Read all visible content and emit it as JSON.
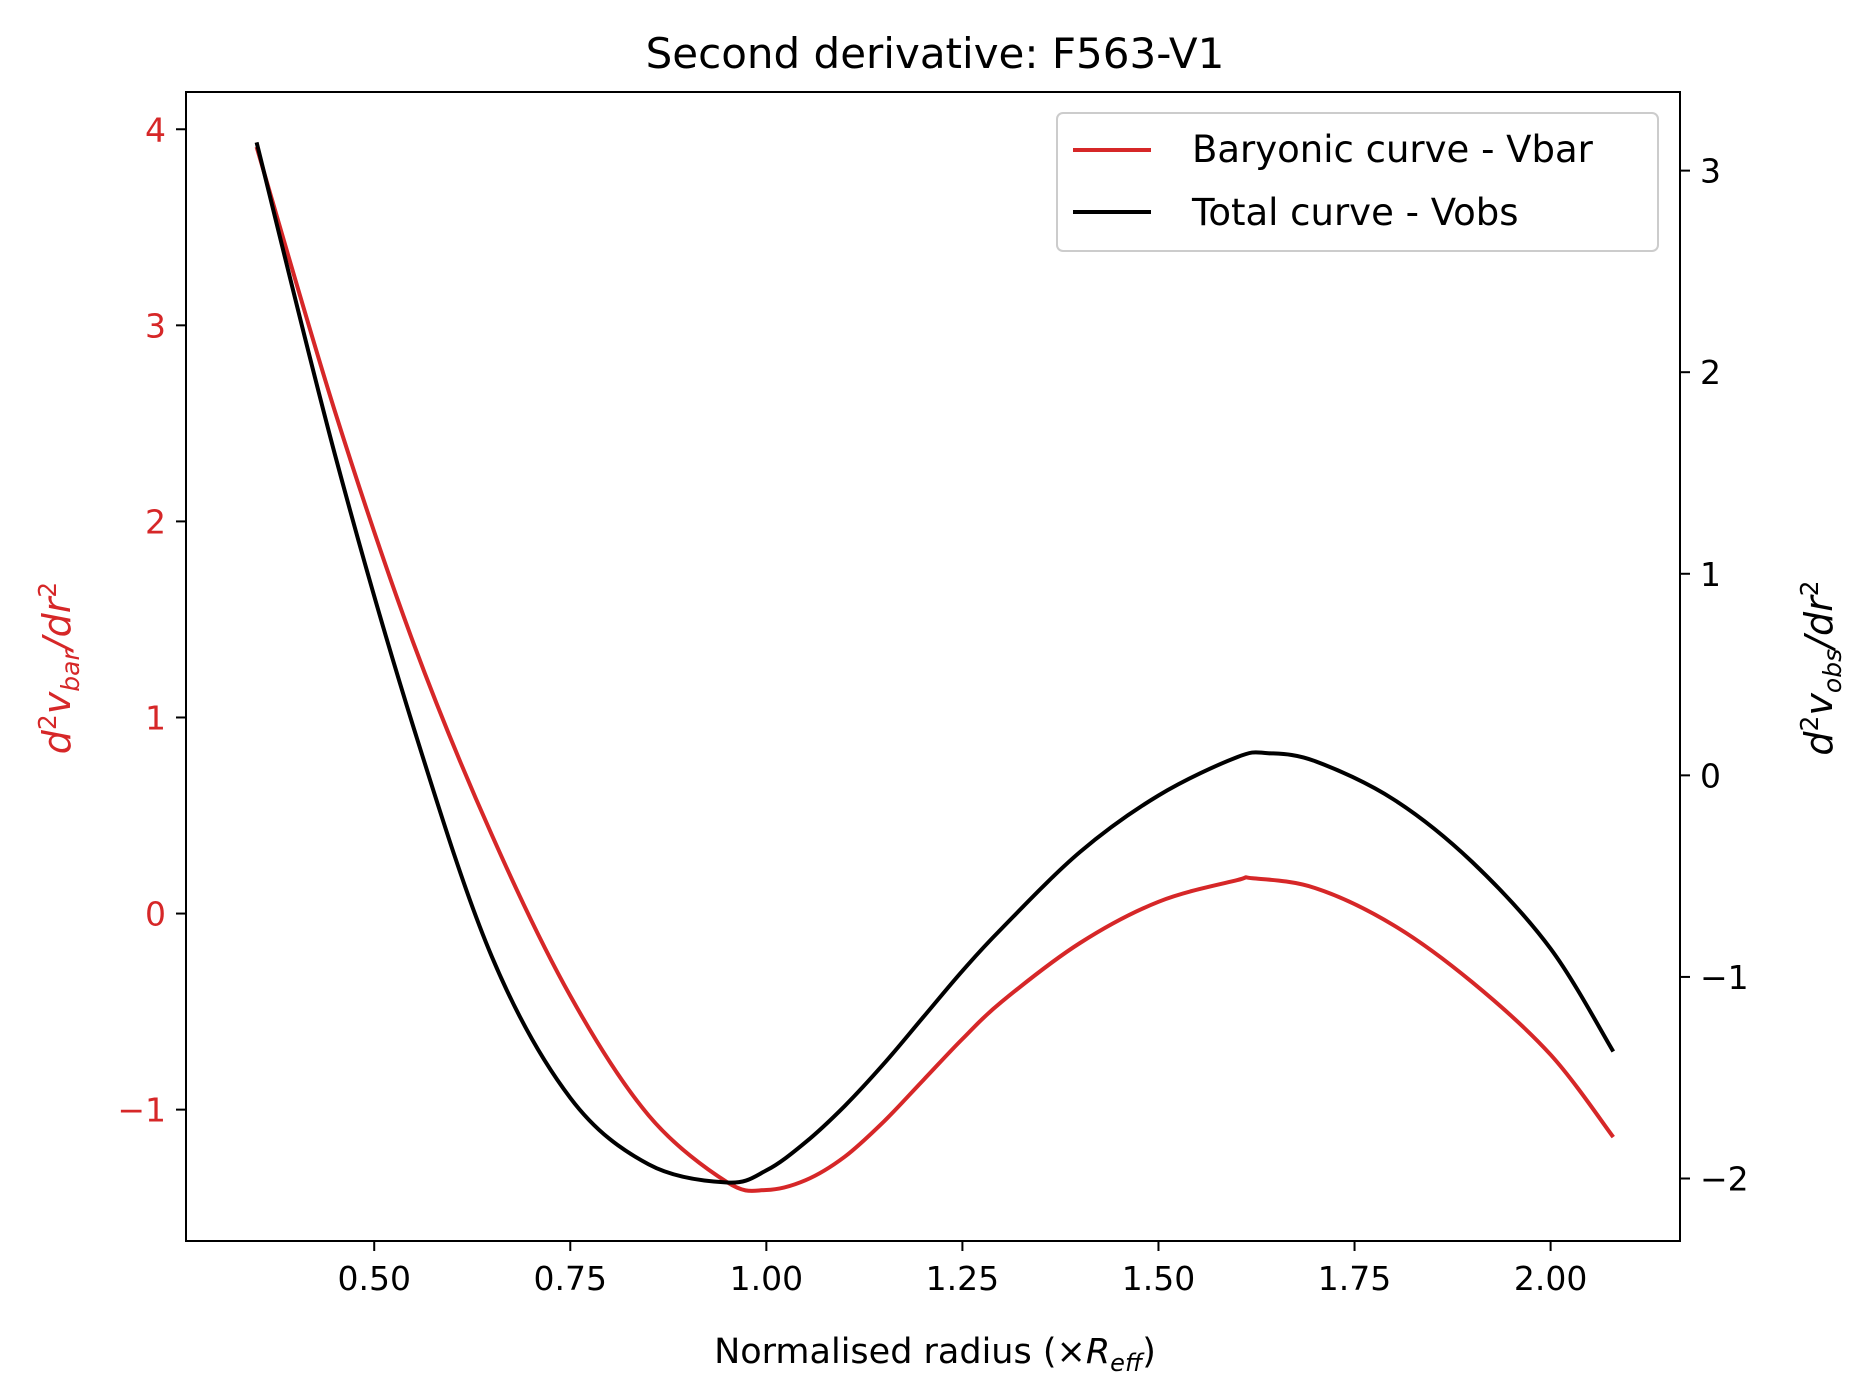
{
  "chart_data": {
    "type": "line",
    "title": "Second derivative: F563-V1",
    "xlabel": "Normalised radius (×R_eff)",
    "xlabel_parts": {
      "main": "Normalised radius (×",
      "italic": "R",
      "sub": "eff",
      "close": ")"
    },
    "ylabel_left_parts": {
      "d": "d",
      "sup": "2",
      "v": "v",
      "sub": "bar",
      "rest": "/dr",
      "sup2": "2"
    },
    "ylabel_right_parts": {
      "d": "d",
      "sup": "2",
      "v": "v",
      "sub": "obs",
      "rest": "/dr",
      "sup2": "2"
    },
    "xlim": [
      0.26,
      2.165
    ],
    "ylim_left": [
      -1.67,
      4.19
    ],
    "ylim_right": [
      -2.31,
      3.39
    ],
    "x_ticks": [
      "0.50",
      "0.75",
      "1.00",
      "1.25",
      "1.50",
      "1.75",
      "2.00"
    ],
    "y_left_ticks": [
      "−1",
      "0",
      "1",
      "2",
      "3",
      "4"
    ],
    "y_right_ticks": [
      "−2",
      "−1",
      "0",
      "1",
      "2",
      "3"
    ],
    "legend_position": "top-right",
    "colors": {
      "vbar": "#d62728",
      "vobs": "#000000"
    },
    "series": [
      {
        "name": "Baryonic curve - Vbar",
        "axis": "left",
        "x": [
          0.35,
          0.45,
          0.55,
          0.65,
          0.75,
          0.85,
          0.95,
          1.0,
          1.05,
          1.1,
          1.15,
          1.2,
          1.25,
          1.3,
          1.4,
          1.5,
          1.6,
          1.62,
          1.7,
          1.8,
          1.9,
          2.0,
          2.08
        ],
        "values": [
          3.91,
          2.56,
          1.38,
          0.4,
          -0.42,
          -1.03,
          -1.37,
          -1.41,
          -1.36,
          -1.24,
          -1.06,
          -0.85,
          -0.64,
          -0.45,
          -0.15,
          0.06,
          0.17,
          0.18,
          0.13,
          -0.06,
          -0.35,
          -0.72,
          -1.14
        ]
      },
      {
        "name": "Total curve - Vobs",
        "axis": "right",
        "x": [
          0.35,
          0.45,
          0.55,
          0.65,
          0.75,
          0.85,
          0.95,
          1.0,
          1.05,
          1.1,
          1.15,
          1.2,
          1.25,
          1.3,
          1.4,
          1.5,
          1.6,
          1.64,
          1.7,
          1.8,
          1.9,
          2.0,
          2.08
        ],
        "values": [
          3.14,
          1.59,
          0.24,
          -0.9,
          -1.6,
          -1.93,
          -2.02,
          -1.96,
          -1.82,
          -1.64,
          -1.43,
          -1.2,
          -0.97,
          -0.76,
          -0.38,
          -0.1,
          0.09,
          0.11,
          0.07,
          -0.12,
          -0.43,
          -0.86,
          -1.37
        ]
      }
    ]
  }
}
